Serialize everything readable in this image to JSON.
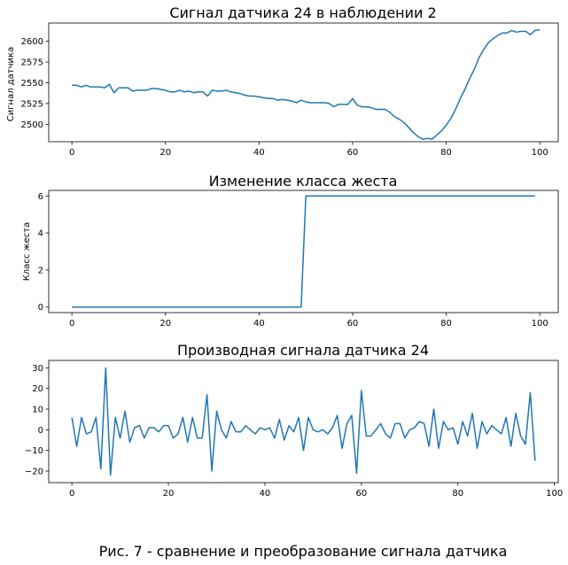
{
  "caption": "Рис. 7 - сравнение и преобразование сигнала датчика",
  "chart_data": [
    {
      "type": "line",
      "title": "Сигнал датчика 24 в наблюдении 2",
      "xlabel": "",
      "ylabel": "Сигнал датчика",
      "xlim": [
        -4.95,
        103.95
      ],
      "ylim": [
        2479,
        2622
      ],
      "xticks": [
        0,
        20,
        40,
        60,
        80,
        100
      ],
      "xtick_labels": [
        "0",
        "20",
        "40",
        "60",
        "80",
        "100"
      ],
      "yticks": [
        2500,
        2525,
        2550,
        2575,
        2600
      ],
      "ytick_labels": [
        "2500",
        "2525",
        "2550",
        "2575",
        "2600"
      ],
      "grid": false,
      "color": "#1f77b4",
      "x_start": 0,
      "values": [
        2547,
        2547,
        2545,
        2547,
        2545,
        2545,
        2545,
        2544,
        2548,
        2538,
        2544,
        2544,
        2544,
        2540,
        2541,
        2541,
        2541,
        2543,
        2543,
        2542,
        2541,
        2539,
        2539,
        2541,
        2539,
        2540,
        2538,
        2539,
        2539,
        2534,
        2541,
        2540,
        2540,
        2541,
        2539,
        2538,
        2537,
        2535,
        2534,
        2534,
        2533,
        2532,
        2531,
        2531,
        2529,
        2530,
        2529,
        2528,
        2526,
        2529,
        2527,
        2526,
        2526,
        2526,
        2526,
        2525,
        2521,
        2524,
        2524,
        2524,
        2531,
        2523,
        2521,
        2521,
        2520,
        2518,
        2518,
        2518,
        2514,
        2509,
        2506,
        2502,
        2496,
        2490,
        2485,
        2482,
        2483,
        2482,
        2487,
        2492,
        2499,
        2507,
        2518,
        2531,
        2542,
        2555,
        2566,
        2580,
        2590,
        2598,
        2603,
        2607,
        2610,
        2610,
        2613,
        2611,
        2612,
        2612,
        2608,
        2613,
        2614
      ]
    },
    {
      "type": "line",
      "title": "Изменение класса жеста",
      "xlabel": "",
      "ylabel": "Класс жеста",
      "xlim": [
        -4.95,
        103.95
      ],
      "ylim": [
        -0.3,
        6.3
      ],
      "xticks": [
        0,
        20,
        40,
        60,
        80,
        100
      ],
      "xtick_labels": [
        "0",
        "20",
        "40",
        "60",
        "80",
        "100"
      ],
      "yticks": [
        0,
        2,
        4,
        6
      ],
      "ytick_labels": [
        "0",
        "2",
        "4",
        "6"
      ],
      "grid": false,
      "color": "#1f77b4",
      "x": [
        0,
        49,
        50,
        99
      ],
      "y": [
        0,
        0,
        6,
        6
      ]
    },
    {
      "type": "line",
      "title": "Производная сигнала датчика 24",
      "xlabel": "",
      "ylabel": "",
      "xlim": [
        -4.8,
        100.8
      ],
      "ylim": [
        -25.6,
        33.6
      ],
      "xticks": [
        0,
        20,
        40,
        60,
        80,
        100
      ],
      "xtick_labels": [
        "0",
        "20",
        "40",
        "60",
        "80",
        "100"
      ],
      "yticks": [
        -20,
        -10,
        0,
        10,
        20,
        30
      ],
      "ytick_labels": [
        "−20",
        "−10",
        "0",
        "10",
        "20",
        "30"
      ],
      "grid": false,
      "color": "#1f77b4",
      "x_start": 0,
      "values": [
        6,
        -8,
        6,
        -2,
        -1,
        6,
        -19,
        30,
        -22,
        6,
        -4,
        9,
        -6,
        1,
        2,
        -4,
        1,
        1,
        -1,
        2,
        2,
        -4,
        -2,
        6,
        -6,
        6,
        -4,
        -4,
        17,
        -20,
        9,
        0,
        -4,
        4,
        -1,
        -1,
        2,
        0,
        -2,
        1,
        0,
        1,
        -4,
        5,
        -5,
        2,
        -1,
        6,
        -10,
        6,
        0,
        -1,
        0,
        -2,
        1,
        7,
        -9,
        3,
        7,
        -21,
        19,
        -3,
        -3,
        0,
        3,
        -2,
        -4,
        3,
        3,
        -4,
        0,
        1,
        4,
        3,
        -8,
        10,
        -9,
        4,
        0,
        1,
        -7,
        4,
        -3,
        8,
        -9,
        4,
        -2,
        2,
        0,
        -2,
        6,
        -8,
        8,
        -3,
        -7,
        18,
        -15
      ]
    }
  ]
}
